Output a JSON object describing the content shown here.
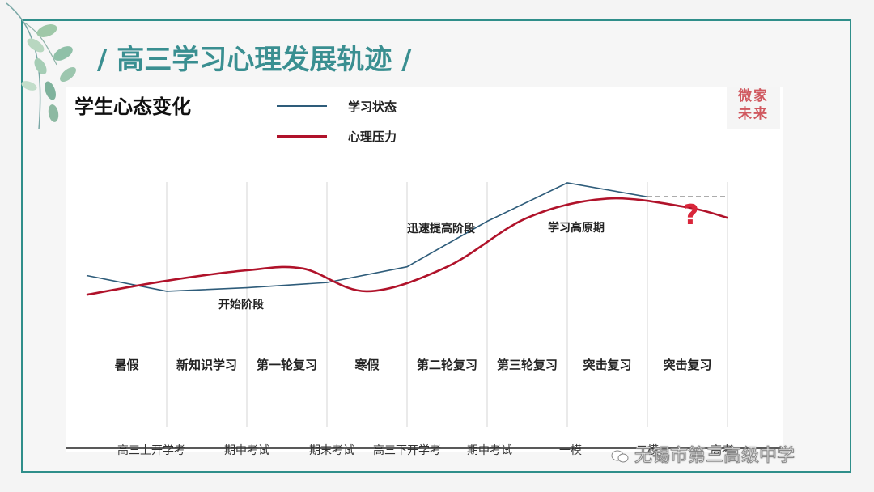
{
  "slide": {
    "title": "/ 高三学习心理发展轨迹 /",
    "stamp_text": "微家未来",
    "watermark": "无锡市第三高级中学"
  },
  "colors": {
    "frame": "#2f8e8a",
    "title": "#3a8f91",
    "study_line": "#2e5c7a",
    "pressure_line": "#b0122a",
    "question_mark": "#d9263a"
  },
  "chart_data": {
    "type": "line",
    "title": "学生心态变化",
    "stages": [
      "暑假",
      "新知识学习",
      "第一轮复习",
      "寒假",
      "第二轮复习",
      "第三轮复习",
      "突击复习",
      "突击复习"
    ],
    "x_tick_labels": [
      "高三上开学考",
      "期中考试",
      "期末考试",
      "高三下开学考",
      "期中考试",
      "一模",
      "二模",
      "高考"
    ],
    "annotations": [
      "开始阶段",
      "迅速提高阶段",
      "学习高原期",
      "?"
    ],
    "series": [
      {
        "name": "学习状态",
        "color": "#2e5c7a",
        "x": [
          0.0,
          1.0,
          2.0,
          3.0,
          4.0,
          5.0,
          6.0,
          7.0
        ],
        "y": [
          47,
          38,
          40,
          43,
          52,
          78,
          100,
          92
        ],
        "projection": {
          "x": [
            7.0,
            8.0
          ],
          "y": [
            92,
            92
          ]
        }
      },
      {
        "name": "心理压力",
        "color": "#b0122a",
        "x": [
          0.0,
          1.0,
          2.0,
          2.7,
          3.5,
          4.5,
          5.5,
          6.5,
          7.5,
          8.0
        ],
        "y": [
          36,
          44,
          50,
          51,
          38,
          52,
          80,
          91,
          86,
          80
        ]
      }
    ],
    "ylim": [
      0,
      110
    ],
    "grid": "vertical stage dividers",
    "legend": "top-left"
  }
}
